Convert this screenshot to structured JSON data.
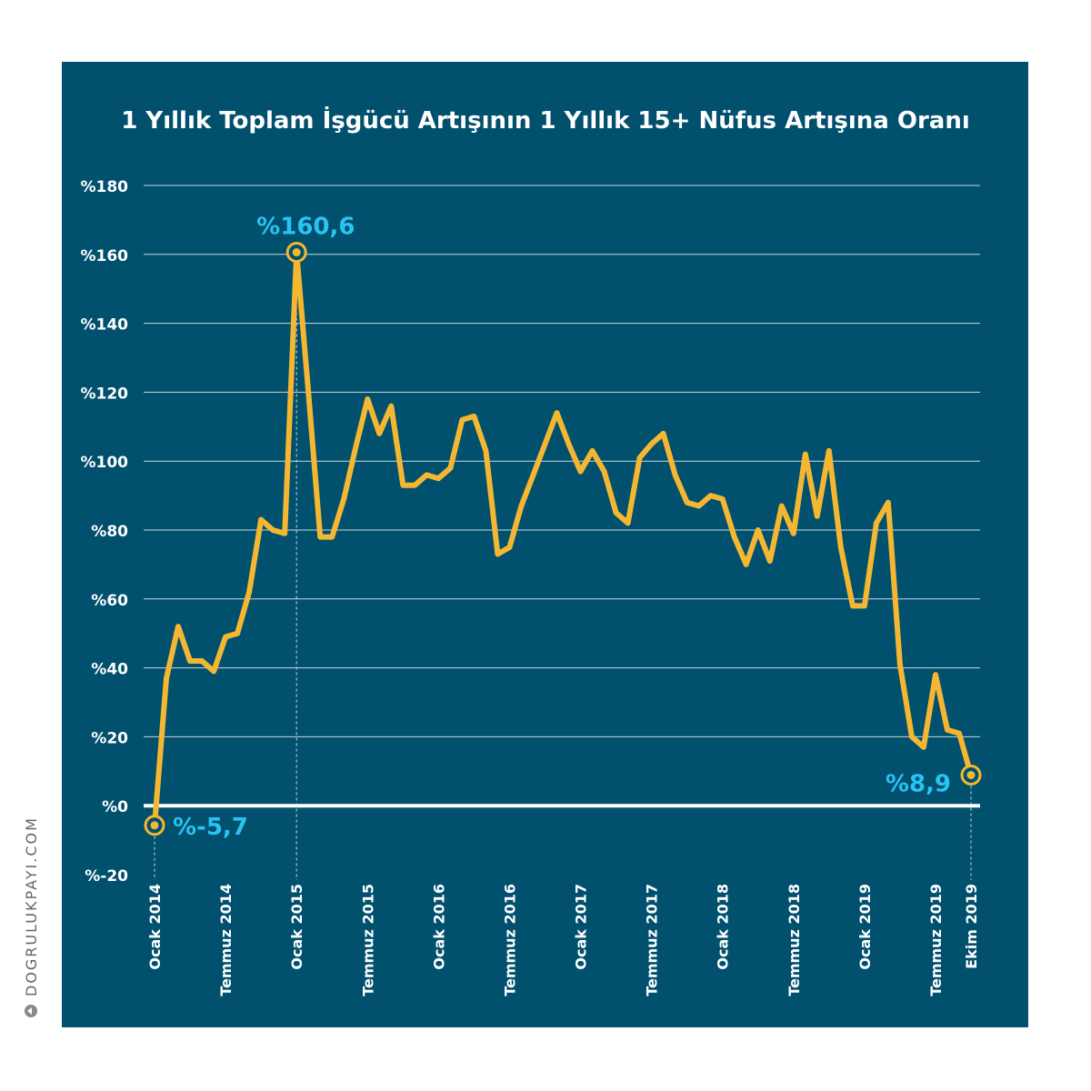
{
  "chart_data": {
    "type": "line",
    "title": "1 Yıllık Toplam İşgücü Artışının 1 Yıllık 15+ Nüfus Artışına Oranı",
    "y_ticks": [
      "%180",
      "%160",
      "%140",
      "%120",
      "%100",
      "%80",
      "%60",
      "%40",
      "%20",
      "%0",
      "%-20"
    ],
    "y_tick_values": [
      180,
      160,
      140,
      120,
      100,
      80,
      60,
      40,
      20,
      0,
      -20
    ],
    "ylim": [
      -20,
      180
    ],
    "x_tick_labels": [
      {
        "label": "Ocak 2014",
        "index": 0
      },
      {
        "label": "Temmuz 2014",
        "index": 6
      },
      {
        "label": "Ocak 2015",
        "index": 12
      },
      {
        "label": "Temmuz 2015",
        "index": 18
      },
      {
        "label": "Ocak 2016",
        "index": 24
      },
      {
        "label": "Temmuz 2016",
        "index": 30
      },
      {
        "label": "Ocak 2017",
        "index": 36
      },
      {
        "label": "Temmuz 2017",
        "index": 42
      },
      {
        "label": "Ocak 2018",
        "index": 48
      },
      {
        "label": "Temmuz 2018",
        "index": 54
      },
      {
        "label": "Ocak 2019",
        "index": 60
      },
      {
        "label": "Temmuz 2019",
        "index": 66
      },
      {
        "label": "Ekim 2019",
        "index": 69
      }
    ],
    "values": [
      -5.7,
      37,
      52,
      42,
      42,
      39,
      49,
      50,
      62,
      83,
      80,
      79,
      160.6,
      120,
      78,
      78,
      89,
      104,
      118,
      108,
      116,
      93,
      93,
      96,
      95,
      98,
      112,
      113,
      103,
      73,
      75,
      87,
      96,
      105,
      114,
      105,
      97,
      103,
      97,
      85,
      82,
      101,
      105,
      108,
      96,
      88,
      87,
      90,
      89,
      78,
      70,
      80,
      71,
      87,
      79,
      102,
      84,
      103,
      75,
      58,
      58,
      82,
      88,
      41,
      20,
      17,
      38,
      22,
      21,
      8.9
    ],
    "annotations": [
      {
        "label": "%-5,7",
        "index": 0
      },
      {
        "label": "%160,6",
        "index": 12
      },
      {
        "label": "%8,9",
        "index": 69
      }
    ],
    "grid": true,
    "colors": {
      "background": "#00506e",
      "line": "#f5b731",
      "annotation_text": "#29c3f2",
      "grid": "#c9d8df",
      "zero_line": "#ffffff",
      "text": "#ffffff"
    }
  },
  "branding": {
    "text": "DOGRULUKPAYI.COM"
  }
}
